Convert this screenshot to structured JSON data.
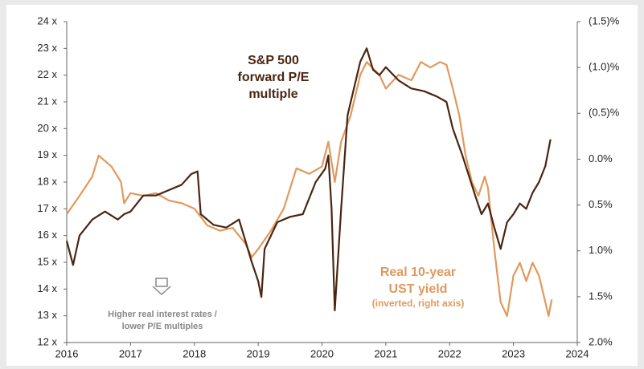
{
  "chart_data": {
    "type": "line",
    "xlim": [
      2016,
      2024
    ],
    "xticks": [
      2016,
      2017,
      2018,
      2019,
      2020,
      2021,
      2022,
      2023,
      2024
    ],
    "ylim": [
      12,
      24
    ],
    "yticks": [
      {
        "value": 12,
        "label": "12 x"
      },
      {
        "value": 13,
        "label": "13 x"
      },
      {
        "value": 14,
        "label": "14 x"
      },
      {
        "value": 15,
        "label": "15 x"
      },
      {
        "value": 16,
        "label": "16 x"
      },
      {
        "value": 17,
        "label": "17 x"
      },
      {
        "value": 18,
        "label": "18 x"
      },
      {
        "value": 19,
        "label": "19 x"
      },
      {
        "value": 20,
        "label": "20 x"
      },
      {
        "value": 21,
        "label": "21 x"
      },
      {
        "value": 22,
        "label": "22 x"
      },
      {
        "value": 23,
        "label": "23 x"
      },
      {
        "value": 24,
        "label": "24 x"
      }
    ],
    "y2lim": [
      2.0,
      -1.5
    ],
    "y2ticks": [
      {
        "value": 2.0,
        "label": "2.0%"
      },
      {
        "value": 1.5,
        "label": "1.5%"
      },
      {
        "value": 1.0,
        "label": "1.0%"
      },
      {
        "value": 0.5,
        "label": "0.5%"
      },
      {
        "value": 0,
        "label": "0.0%"
      },
      {
        "value": -0.5,
        "label": "(0.5)%"
      },
      {
        "value": -1.0,
        "label": "(1.0)%"
      },
      {
        "value": -1.5,
        "label": "(1.5)%"
      }
    ],
    "series": [
      {
        "label": [
          "S&P 500",
          "forward P/E",
          "multiple"
        ],
        "color": "#4a2511",
        "x": [
          2016.0,
          2016.1,
          2016.2,
          2016.4,
          2016.6,
          2016.8,
          2016.9,
          2017.0,
          2017.2,
          2017.4,
          2017.6,
          2017.8,
          2017.95,
          2018.05,
          2018.1,
          2018.3,
          2018.5,
          2018.7,
          2018.9,
          2019.0,
          2019.05,
          2019.1,
          2019.3,
          2019.5,
          2019.7,
          2019.9,
          2020.05,
          2020.1,
          2020.15,
          2020.2,
          2020.3,
          2020.4,
          2020.5,
          2020.6,
          2020.7,
          2020.8,
          2020.9,
          2021.0,
          2021.2,
          2021.4,
          2021.6,
          2021.8,
          2021.95,
          2022.05,
          2022.2,
          2022.4,
          2022.5,
          2022.6,
          2022.7,
          2022.8,
          2022.9,
          2023.0,
          2023.1,
          2023.2,
          2023.3,
          2023.4,
          2023.5,
          2023.58
        ],
        "values": [
          15.8,
          14.9,
          16.0,
          16.6,
          16.9,
          16.6,
          16.8,
          16.9,
          17.5,
          17.5,
          17.7,
          17.9,
          18.3,
          18.4,
          16.8,
          16.4,
          16.3,
          16.6,
          15.0,
          14.3,
          13.7,
          15.5,
          16.5,
          16.7,
          16.8,
          18.0,
          18.5,
          19.0,
          17.0,
          13.2,
          17.0,
          20.5,
          21.5,
          22.5,
          23.0,
          22.2,
          22.0,
          22.3,
          21.8,
          21.5,
          21.4,
          21.2,
          21.0,
          20.0,
          19.0,
          17.5,
          16.8,
          17.2,
          16.3,
          15.5,
          16.5,
          16.8,
          17.2,
          17.0,
          17.6,
          18.0,
          18.6,
          19.6
        ]
      },
      {
        "label": [
          "Real 10-year",
          "UST yield",
          "(inverted, right axis)"
        ],
        "color": "#e0995e",
        "axis": "y2",
        "x": [
          2016.0,
          2016.2,
          2016.4,
          2016.5,
          2016.7,
          2016.85,
          2016.9,
          2017.0,
          2017.2,
          2017.4,
          2017.6,
          2017.8,
          2018.0,
          2018.2,
          2018.4,
          2018.6,
          2018.8,
          2018.9,
          2019.0,
          2019.2,
          2019.4,
          2019.6,
          2019.8,
          2020.0,
          2020.1,
          2020.2,
          2020.3,
          2020.45,
          2020.6,
          2020.7,
          2020.9,
          2021.0,
          2021.2,
          2021.4,
          2021.55,
          2021.7,
          2021.85,
          2021.95,
          2022.05,
          2022.15,
          2022.25,
          2022.35,
          2022.45,
          2022.55,
          2022.6,
          2022.7,
          2022.8,
          2022.9,
          2023.0,
          2023.1,
          2023.2,
          2023.3,
          2023.4,
          2023.5,
          2023.55,
          2023.6
        ],
        "values": [
          0.6,
          0.4,
          0.19,
          -0.04,
          0.08,
          0.25,
          0.48,
          0.37,
          0.4,
          0.37,
          0.45,
          0.48,
          0.54,
          0.72,
          0.78,
          0.75,
          0.92,
          1.07,
          0.98,
          0.78,
          0.54,
          0.1,
          0.16,
          0.08,
          -0.19,
          0.25,
          -0.19,
          -0.48,
          -0.92,
          -1.06,
          -0.92,
          -0.77,
          -0.92,
          -0.86,
          -1.06,
          -1.0,
          -1.06,
          -1.03,
          -0.77,
          -0.48,
          -0.04,
          0.25,
          0.4,
          0.19,
          0.31,
          0.98,
          1.56,
          1.71,
          1.27,
          1.13,
          1.33,
          1.13,
          1.27,
          1.56,
          1.71,
          1.53
        ]
      }
    ],
    "annotations": [
      "Higher real interest rates /",
      "lower P/E multiples"
    ]
  }
}
